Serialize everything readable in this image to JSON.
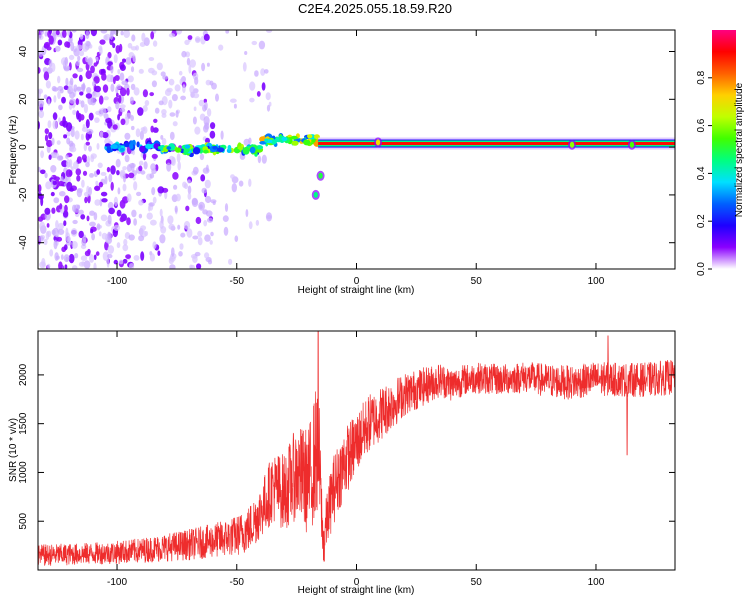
{
  "title": "C2E4.2025.055.18.59.R20",
  "colors": {
    "snr_line": "#ee2c2c",
    "background": "#ffffff",
    "axis": "#000000",
    "spec_hot": "#e80000",
    "spec_mid": "#40ff40",
    "spec_low": "#1530ff",
    "spec_faint": "#8a2be2"
  },
  "chart_data": [
    {
      "type": "heatmap",
      "name": "spectrogram",
      "title": "C2E4.2025.055.18.59.R20",
      "xlabel": "Height of straight line (km)",
      "ylabel": "Frequency (Hz)",
      "xlim": [
        -133,
        133
      ],
      "ylim": [
        -51,
        49
      ],
      "xticks": [
        -100,
        -50,
        0,
        50,
        100
      ],
      "yticks": [
        -40,
        -20,
        0,
        20,
        40
      ],
      "colorbar": {
        "label": "Normalized spectral amplitude",
        "range": [
          0.0,
          1.0
        ],
        "ticks": [
          0.0,
          0.2,
          0.4,
          0.6,
          0.8
        ],
        "tick_labels": [
          "0.0",
          "0.2",
          "0.4",
          "0.6",
          "0.8"
        ],
        "colormap": [
          "#ffffff",
          "#8a00ff",
          "#1e00ff",
          "#0060ff",
          "#00e0ff",
          "#00ff80",
          "#40ff00",
          "#c0ff00",
          "#ffd000",
          "#ff6000",
          "#ff0000",
          "#ff0080"
        ]
      },
      "regions": [
        {
          "x_range": [
            -133,
            -95
          ],
          "description": "dense noise speckle",
          "density": 0.85
        },
        {
          "x_range": [
            -95,
            -60
          ],
          "description": "fading noise speckle",
          "density": 0.45
        },
        {
          "x_range": [
            -60,
            -36
          ],
          "description": "sparse speckle",
          "density": 0.12
        }
      ],
      "carrier": {
        "segments": [
          {
            "x_range": [
              -104,
              -82
            ],
            "freq": 0,
            "amplitude": 0.3
          },
          {
            "x_range": [
              -82,
              -40
            ],
            "freq": -1,
            "amplitude": 0.5
          },
          {
            "x_range": [
              -40,
              -16
            ],
            "freq": 3,
            "amplitude": 0.6
          },
          {
            "x_range": [
              -16,
              133
            ],
            "freq": 1.5,
            "amplitude": 0.95
          }
        ],
        "features": [
          {
            "x": -15,
            "freq": -12,
            "amplitude": 0.5
          },
          {
            "x": -17,
            "freq": -20,
            "amplitude": 0.45
          },
          {
            "x": 9,
            "freq": 2,
            "amplitude": 0.7
          },
          {
            "x": 90,
            "freq": 1,
            "amplitude": 0.6
          },
          {
            "x": 115,
            "freq": 1,
            "amplitude": 0.55
          }
        ]
      }
    },
    {
      "type": "line",
      "name": "snr",
      "xlabel": "Height of straight line (km)",
      "ylabel": "SNR (10 * v/v)",
      "xlim": [
        -133,
        133
      ],
      "ylim": [
        0,
        2450
      ],
      "xticks": [
        -100,
        -50,
        0,
        50,
        100
      ],
      "yticks": [
        500,
        1000,
        1500,
        2000
      ],
      "series": [
        {
          "name": "SNR",
          "x": [
            -133,
            -120,
            -110,
            -100,
            -90,
            -80,
            -70,
            -60,
            -50,
            -45,
            -40,
            -35,
            -30,
            -25,
            -20,
            -16,
            -14,
            -10,
            -5,
            0,
            5,
            10,
            15,
            20,
            25,
            30,
            35,
            40,
            45,
            50,
            60,
            70,
            80,
            90,
            100,
            110,
            120,
            133
          ],
          "values": [
            150,
            160,
            170,
            180,
            200,
            230,
            260,
            300,
            350,
            420,
            600,
            850,
            800,
            1000,
            900,
            1300,
            300,
            800,
            1100,
            1300,
            1500,
            1600,
            1700,
            1800,
            1850,
            1900,
            1950,
            1900,
            1950,
            1970,
            1950,
            1980,
            1940,
            1920,
            1960,
            1950,
            1950,
            1980
          ],
          "spread": [
            140,
            140,
            140,
            150,
            160,
            180,
            200,
            220,
            260,
            300,
            350,
            450,
            500,
            600,
            700,
            900,
            300,
            450,
            450,
            400,
            380,
            350,
            320,
            280,
            260,
            240,
            220,
            220,
            200,
            200,
            200,
            200,
            220,
            220,
            220,
            220,
            220,
            230
          ]
        }
      ],
      "spikes": [
        {
          "x": -16,
          "value": 2450
        },
        {
          "x": 105,
          "value": 2400
        },
        {
          "x": 113,
          "value": 1180
        },
        {
          "x": -13.5,
          "value": 90
        }
      ]
    }
  ]
}
